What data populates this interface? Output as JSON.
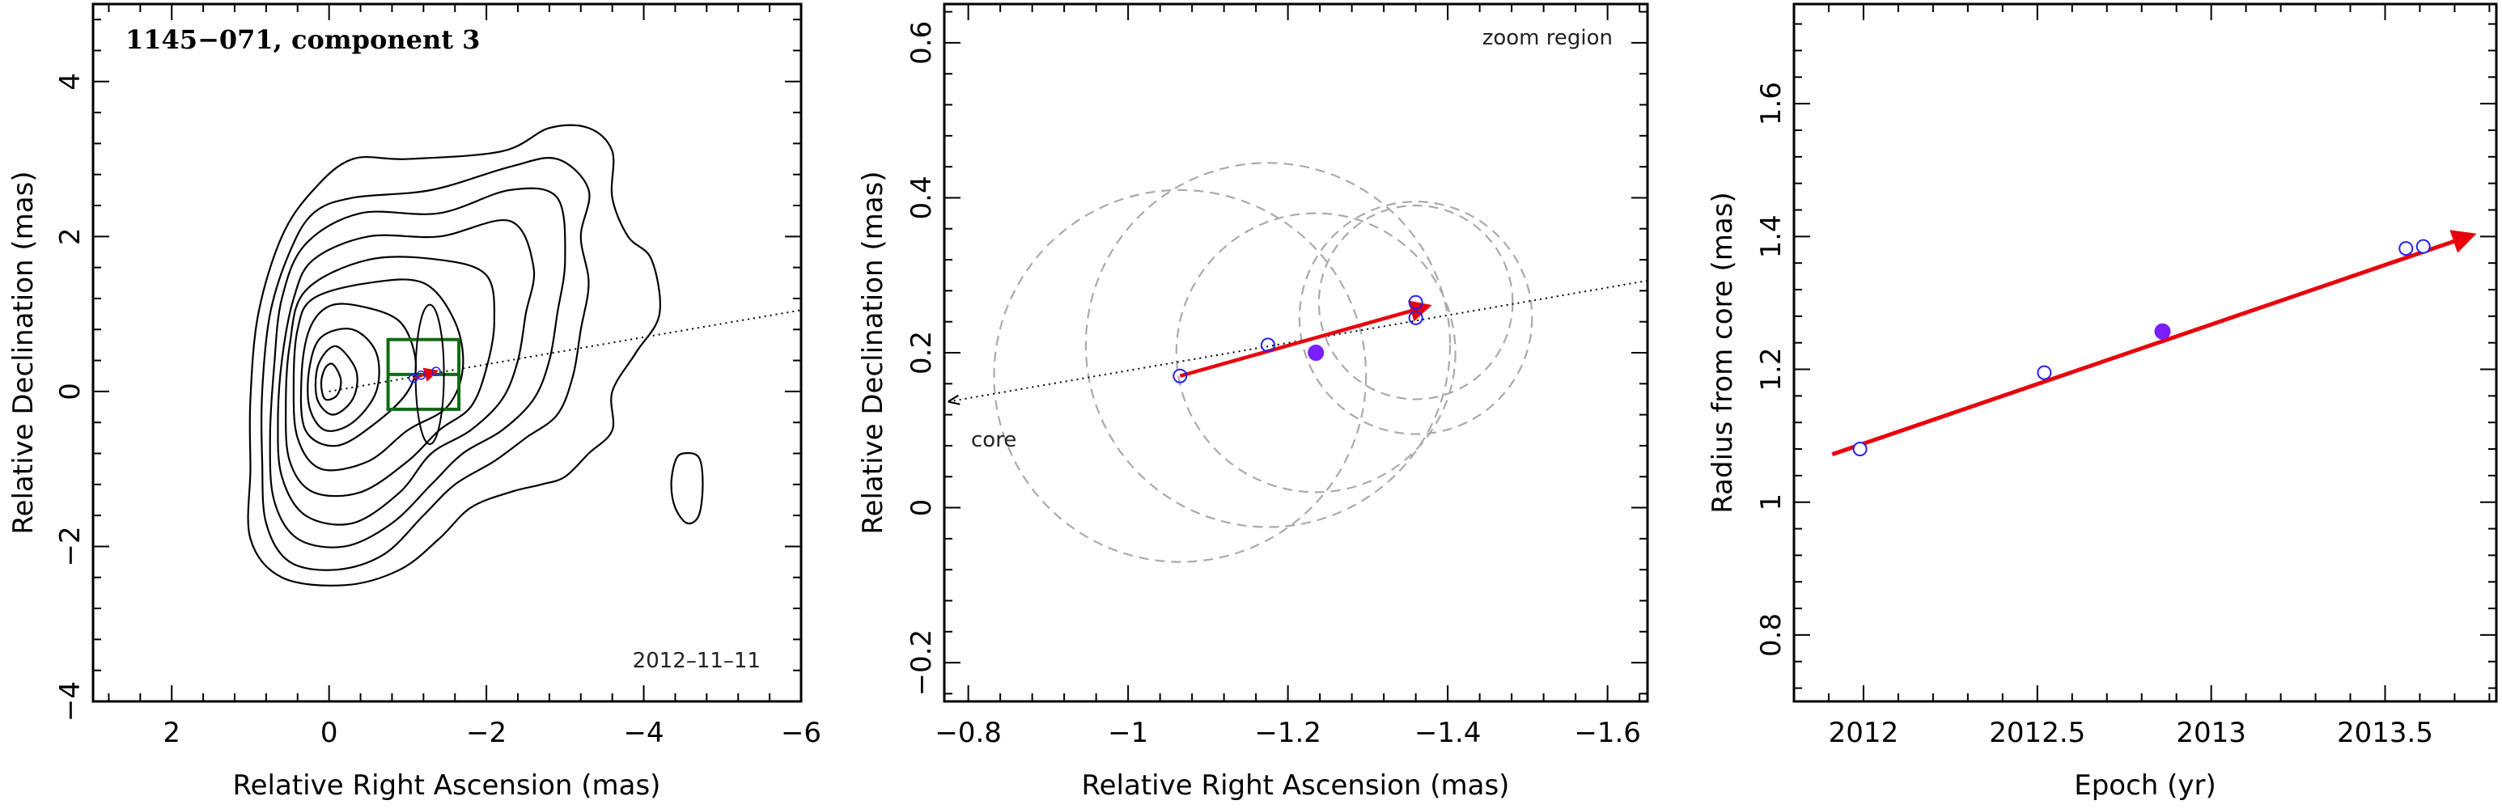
{
  "chart_data": [
    {
      "type": "scatter",
      "subtype": "contour_map",
      "title": "1145−071, component 3",
      "xlabel": "Relative Right Ascension (mas)",
      "ylabel": "Relative Declination (mas)",
      "xlim": [
        3,
        -6
      ],
      "ylim": [
        -4,
        5
      ],
      "xticks": [
        2,
        0,
        -2,
        -4,
        -6
      ],
      "xtick_labels": [
        "2",
        "0",
        "−2",
        "−4",
        "−6"
      ],
      "yticks": [
        -4,
        -2,
        0,
        2,
        4
      ],
      "ytick_labels": [
        "−4",
        "−2",
        "0",
        "2",
        "4"
      ],
      "annotation": "2012–11–11",
      "grid": false,
      "colors": {
        "contour": "#000000",
        "zoom_box": "#0f6b12",
        "arrow": "#e8000b",
        "core_line": "#000000"
      },
      "core_direction_line": [
        [
          0,
          0
        ],
        [
          -6,
          1.05
        ]
      ],
      "zoom_boxes": [
        {
          "ra": [
            -0.75,
            -1.65
          ],
          "dec": [
            0.67,
            -0.23
          ]
        },
        {
          "ra": [
            -0.75,
            -1.65
          ],
          "dec": [
            0.22,
            0.22
          ]
        }
      ],
      "contour_levels": [
        [
          [
            -0.3,
            3.0
          ],
          [
            -1.0,
            3.0
          ],
          [
            -2.2,
            3.1
          ],
          [
            -2.8,
            3.4
          ],
          [
            -3.3,
            3.4
          ],
          [
            -3.6,
            3.1
          ],
          [
            -3.6,
            2.5
          ],
          [
            -3.8,
            2.0
          ],
          [
            -4.1,
            1.7
          ],
          [
            -4.2,
            1.0
          ],
          [
            -3.9,
            0.5
          ],
          [
            -3.6,
            0.0
          ],
          [
            -3.6,
            -0.5
          ],
          [
            -3.3,
            -0.8
          ],
          [
            -3.0,
            -1.1
          ],
          [
            -2.7,
            -1.2
          ],
          [
            -2.3,
            -1.3
          ],
          [
            -1.8,
            -1.5
          ],
          [
            -1.4,
            -1.9
          ],
          [
            -0.9,
            -2.3
          ],
          [
            -0.2,
            -2.5
          ],
          [
            0.6,
            -2.4
          ],
          [
            1.0,
            -1.9
          ],
          [
            1.0,
            -1.0
          ],
          [
            1.0,
            -0.1
          ],
          [
            0.9,
            1.0
          ],
          [
            0.6,
            2.0
          ],
          [
            0.2,
            2.6
          ]
        ],
        [
          [
            -0.3,
            2.5
          ],
          [
            -1.3,
            2.6
          ],
          [
            -2.3,
            2.9
          ],
          [
            -2.9,
            3.0
          ],
          [
            -3.3,
            2.6
          ],
          [
            -3.2,
            2.0
          ],
          [
            -3.3,
            1.4
          ],
          [
            -3.2,
            0.8
          ],
          [
            -3.1,
            0.2
          ],
          [
            -2.9,
            -0.3
          ],
          [
            -2.5,
            -0.6
          ],
          [
            -2.1,
            -0.9
          ],
          [
            -1.6,
            -1.2
          ],
          [
            -1.2,
            -1.6
          ],
          [
            -0.7,
            -2.1
          ],
          [
            -0.1,
            -2.3
          ],
          [
            0.5,
            -2.2
          ],
          [
            0.8,
            -1.7
          ],
          [
            0.85,
            -0.9
          ],
          [
            0.85,
            0.0
          ],
          [
            0.75,
            1.0
          ],
          [
            0.5,
            1.8
          ],
          [
            0.2,
            2.3
          ]
        ],
        [
          [
            -0.4,
            2.3
          ],
          [
            -1.4,
            2.3
          ],
          [
            -2.3,
            2.6
          ],
          [
            -2.9,
            2.5
          ],
          [
            -3.0,
            1.7
          ],
          [
            -2.9,
            1.0
          ],
          [
            -2.8,
            0.4
          ],
          [
            -2.6,
            -0.1
          ],
          [
            -2.2,
            -0.5
          ],
          [
            -1.7,
            -0.8
          ],
          [
            -1.3,
            -1.2
          ],
          [
            -0.8,
            -1.7
          ],
          [
            -0.2,
            -2.0
          ],
          [
            0.4,
            -1.9
          ],
          [
            0.7,
            -1.4
          ],
          [
            0.75,
            -0.6
          ],
          [
            0.7,
            0.3
          ],
          [
            0.6,
            1.2
          ],
          [
            0.3,
            1.9
          ]
        ],
        [
          [
            -0.5,
            2.0
          ],
          [
            -1.4,
            2.0
          ],
          [
            -2.3,
            2.2
          ],
          [
            -2.6,
            1.6
          ],
          [
            -2.5,
            1.0
          ],
          [
            -2.4,
            0.4
          ],
          [
            -2.2,
            -0.1
          ],
          [
            -1.8,
            -0.5
          ],
          [
            -1.3,
            -0.8
          ],
          [
            -0.9,
            -1.3
          ],
          [
            -0.3,
            -1.7
          ],
          [
            0.3,
            -1.6
          ],
          [
            0.6,
            -1.1
          ],
          [
            0.65,
            -0.4
          ],
          [
            0.6,
            0.4
          ],
          [
            0.45,
            1.2
          ],
          [
            0.2,
            1.7
          ]
        ],
        [
          [
            -0.5,
            1.7
          ],
          [
            -1.4,
            1.7
          ],
          [
            -2.0,
            1.5
          ],
          [
            -2.1,
            0.9
          ],
          [
            -2.0,
            0.3
          ],
          [
            -1.8,
            -0.2
          ],
          [
            -1.4,
            -0.5
          ],
          [
            -1.0,
            -0.9
          ],
          [
            -0.4,
            -1.3
          ],
          [
            0.2,
            -1.3
          ],
          [
            0.5,
            -0.9
          ],
          [
            0.55,
            -0.2
          ],
          [
            0.5,
            0.6
          ],
          [
            0.3,
            1.3
          ]
        ],
        [
          [
            -0.5,
            1.4
          ],
          [
            -1.2,
            1.4
          ],
          [
            -1.6,
            0.9
          ],
          [
            -1.7,
            0.3
          ],
          [
            -1.5,
            -0.2
          ],
          [
            -1.0,
            -0.5
          ],
          [
            -0.5,
            -0.9
          ],
          [
            0.1,
            -1.0
          ],
          [
            0.4,
            -0.6
          ],
          [
            0.45,
            0.1
          ],
          [
            0.4,
            0.8
          ],
          [
            0.2,
            1.2
          ]
        ],
        [
          [
            -0.4,
            1.1
          ],
          [
            -0.9,
            0.9
          ],
          [
            -1.1,
            0.4
          ],
          [
            -1.0,
            0.0
          ],
          [
            -0.6,
            -0.4
          ],
          [
            -0.1,
            -0.7
          ],
          [
            0.3,
            -0.5
          ],
          [
            0.35,
            0.2
          ],
          [
            0.25,
            0.8
          ],
          [
            0.0,
            1.1
          ]
        ],
        [
          [
            -0.3,
            0.8
          ],
          [
            -0.6,
            0.5
          ],
          [
            -0.6,
            0.0
          ],
          [
            -0.3,
            -0.4
          ],
          [
            0.05,
            -0.5
          ],
          [
            0.25,
            -0.2
          ],
          [
            0.25,
            0.3
          ],
          [
            0.1,
            0.7
          ]
        ],
        [
          [
            -0.15,
            0.55
          ],
          [
            -0.35,
            0.25
          ],
          [
            -0.3,
            -0.1
          ],
          [
            -0.05,
            -0.3
          ],
          [
            0.15,
            -0.1
          ],
          [
            0.15,
            0.3
          ],
          [
            0.0,
            0.55
          ]
        ],
        [
          [
            -0.05,
            0.35
          ],
          [
            -0.15,
            0.15
          ],
          [
            -0.1,
            -0.05
          ],
          [
            0.05,
            -0.1
          ],
          [
            0.1,
            0.1
          ],
          [
            0.05,
            0.3
          ]
        ],
        [
          [
            -4.4,
            -0.9
          ],
          [
            -4.5,
            -0.8
          ],
          [
            -4.7,
            -0.85
          ],
          [
            -4.75,
            -1.2
          ],
          [
            -4.7,
            -1.6
          ],
          [
            -4.55,
            -1.7
          ],
          [
            -4.4,
            -1.5
          ],
          [
            -4.35,
            -1.2
          ]
        ]
      ],
      "component_ellipse": {
        "ra": -1.28,
        "dec": 0.22,
        "ra_halfwidth": 0.18,
        "dec_halfwidth": 0.9
      },
      "motion_arrow": [
        [
          -1.07,
          0.17
        ],
        [
          -1.36,
          0.26
        ]
      ]
    },
    {
      "type": "scatter",
      "subtype": "zoom_positions",
      "xlabel": "Relative Right Ascension (mas)",
      "ylabel": "Relative Declination (mas)",
      "xlim": [
        -0.77,
        -1.65
      ],
      "ylim": [
        -0.25,
        0.65
      ],
      "xticks": [
        -0.8,
        -1,
        -1.2,
        -1.4,
        -1.6
      ],
      "xtick_labels": [
        "−0.8",
        "−1",
        "−1.2",
        "−1.4",
        "−1.6"
      ],
      "yticks": [
        -0.2,
        0,
        0.2,
        0.4,
        0.6
      ],
      "ytick_labels": [
        "−0.2",
        "0",
        "0.2",
        "0.4",
        "0.6"
      ],
      "annotation": "zoom region",
      "core_label": "core",
      "grid": false,
      "colors": {
        "points": "#2222ee",
        "filled_point": "#7a1fff",
        "arrow": "#e8000b",
        "circles": "#aaaaaa"
      },
      "points": [
        {
          "ra": -1.065,
          "dec": 0.17,
          "filled": false
        },
        {
          "ra": -1.175,
          "dec": 0.21,
          "filled": false
        },
        {
          "ra": -1.235,
          "dec": 0.2,
          "filled": true
        },
        {
          "ra": -1.36,
          "dec": 0.265,
          "filled": false
        },
        {
          "ra": -1.36,
          "dec": 0.245,
          "filled": false
        }
      ],
      "component_circles": [
        {
          "ra": -1.065,
          "dec": 0.17,
          "r": 0.24
        },
        {
          "ra": -1.175,
          "dec": 0.21,
          "r": 0.235
        },
        {
          "ra": -1.235,
          "dec": 0.2,
          "r": 0.18
        },
        {
          "ra": -1.36,
          "dec": 0.265,
          "r": 0.125
        },
        {
          "ra": -1.36,
          "dec": 0.245,
          "r": 0.15
        }
      ],
      "core_direction_line": [
        [
          -0.77,
          0.137
        ],
        [
          -1.65,
          0.293
        ]
      ],
      "motion_arrow": [
        [
          -1.065,
          0.17
        ],
        [
          -1.375,
          0.26
        ]
      ]
    },
    {
      "type": "scatter",
      "subtype": "radius_vs_epoch",
      "xlabel": "Epoch (yr)",
      "ylabel": "Radius from core (mas)",
      "xlim": [
        2011.8,
        2013.82
      ],
      "ylim": [
        0.7,
        1.75
      ],
      "xticks": [
        2012,
        2012.5,
        2013,
        2013.5
      ],
      "xtick_labels": [
        "2012",
        "2012.5",
        "2013",
        "2013.5"
      ],
      "yticks": [
        0.8,
        1,
        1.2,
        1.4,
        1.6
      ],
      "ytick_labels": [
        "0.8",
        "1",
        "1.2",
        "1.4",
        "1.6"
      ],
      "grid": false,
      "colors": {
        "points": "#2222ee",
        "filled_point": "#7a1fff",
        "fit": "#e8000b"
      },
      "points": [
        {
          "epoch": 2011.99,
          "radius": 1.08,
          "filled": false
        },
        {
          "epoch": 2012.52,
          "radius": 1.195,
          "filled": false
        },
        {
          "epoch": 2012.86,
          "radius": 1.257,
          "filled": true
        },
        {
          "epoch": 2013.56,
          "radius": 1.382,
          "filled": false
        },
        {
          "epoch": 2013.61,
          "radius": 1.385,
          "filled": false
        }
      ],
      "fit_line": [
        [
          2011.91,
          1.072
        ],
        [
          2013.75,
          1.402
        ]
      ]
    }
  ]
}
